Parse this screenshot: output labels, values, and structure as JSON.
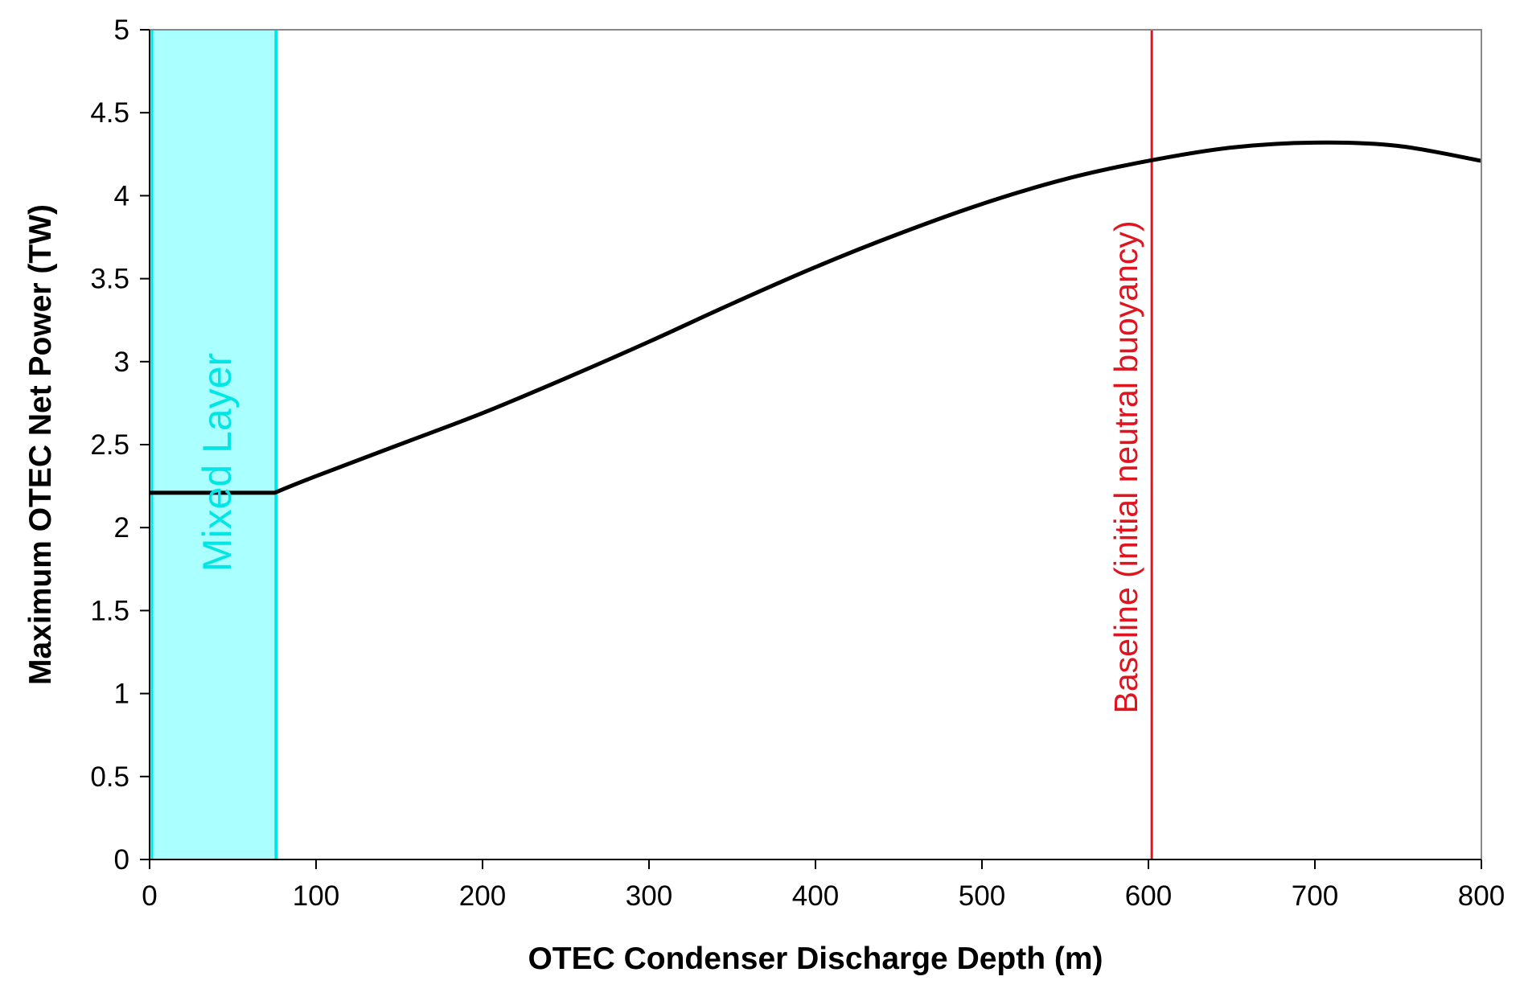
{
  "chart_data": {
    "type": "line",
    "title": "",
    "xlabel": "OTEC Condenser Discharge Depth  (m)",
    "ylabel": "Maximum OTEC Net Power (TW)",
    "xlim": [
      0,
      800
    ],
    "ylim": [
      0,
      5
    ],
    "x_ticks": [
      0,
      100,
      200,
      300,
      400,
      500,
      600,
      700,
      800
    ],
    "y_ticks": [
      0,
      0.5,
      1,
      1.5,
      2,
      2.5,
      3,
      3.5,
      4,
      4.5,
      5
    ],
    "y_tick_labels": [
      "0",
      "0.5",
      "1",
      "1.5",
      "2",
      "2.5",
      "3",
      "3.5",
      "4",
      "4.5",
      "5"
    ],
    "grid": false,
    "legend": "none",
    "series": [
      {
        "color": "#000000",
        "x": [
          0,
          75,
          100,
          150,
          200,
          250,
          300,
          350,
          400,
          450,
          500,
          550,
          600,
          650,
          700,
          750,
          800
        ],
        "y": [
          2.21,
          2.21,
          2.31,
          2.5,
          2.69,
          2.9,
          3.12,
          3.35,
          3.57,
          3.77,
          3.95,
          4.1,
          4.21,
          4.29,
          4.32,
          4.3,
          4.21
        ]
      }
    ],
    "annotations": {
      "mixed_layer": {
        "label": "Mixed Layer",
        "x_from": 0,
        "x_to": 76,
        "fill_color": "#aaffff",
        "line_color": "#00e5e5",
        "text_color": "#00e5e5"
      },
      "baseline": {
        "label": "Baseline (initial neutral buoyancy)",
        "x": 602,
        "color": "#e0141e"
      }
    }
  }
}
